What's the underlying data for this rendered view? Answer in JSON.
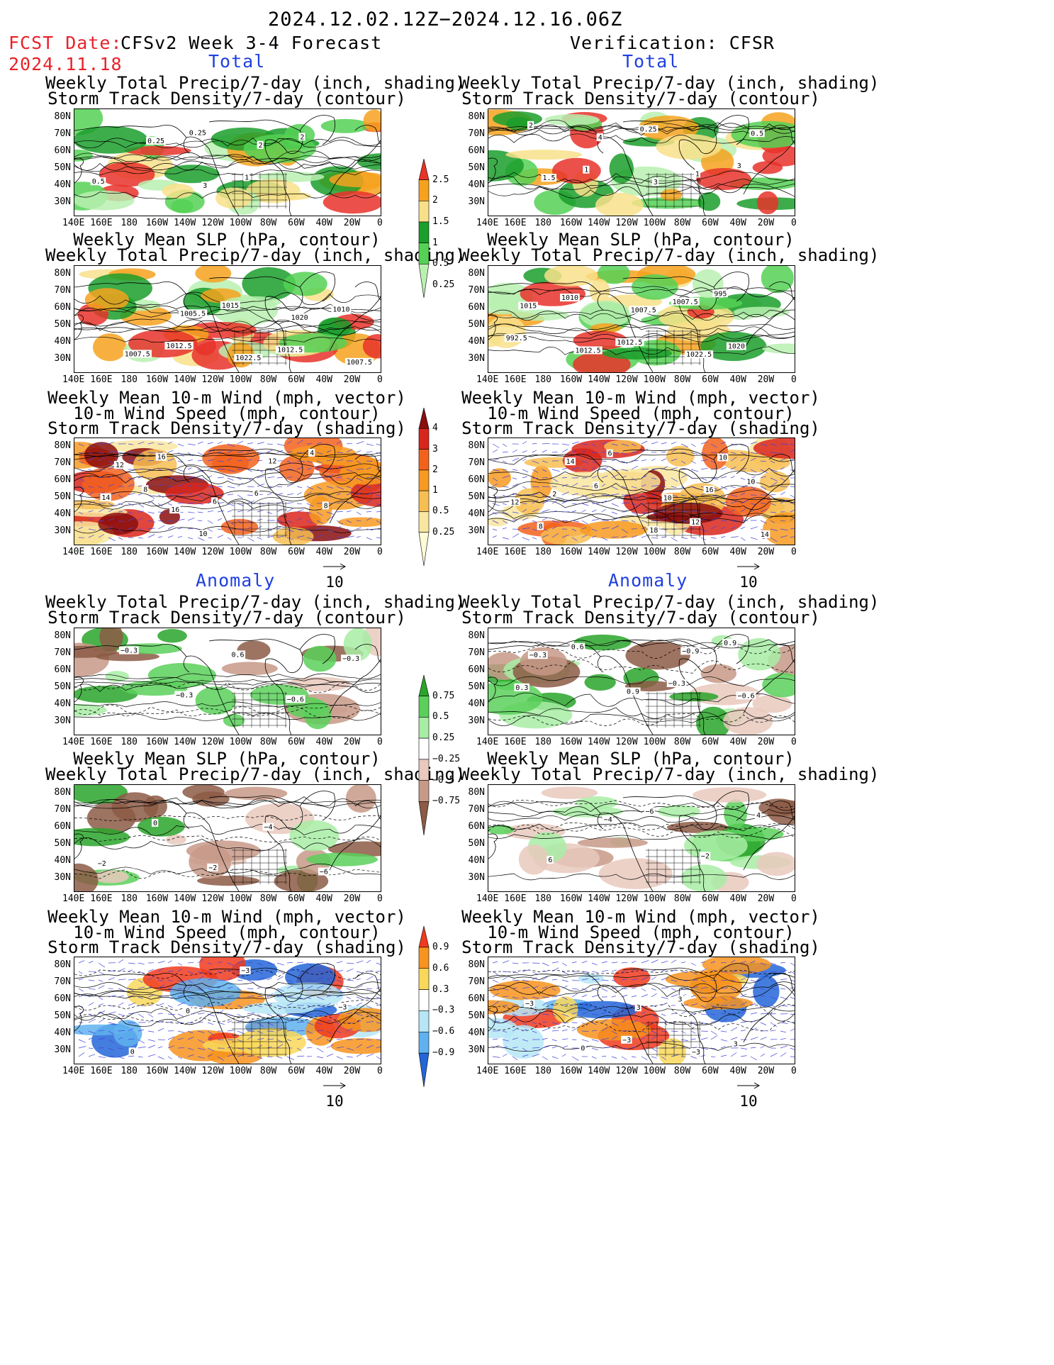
{
  "header": {
    "period": "2024.12.02.12Z−2024.12.16.06Z",
    "fcst_label": "FCST Date:",
    "fcst_date": "2024.11.18",
    "left_title": "CFSv2 Week 3-4 Forecast",
    "right_title": "Verification: CFSR"
  },
  "sections": {
    "total": "Total",
    "anomaly": "Anomaly"
  },
  "titles": {
    "precip_track": [
      "Weekly Total Precip/7-day (inch, shading)",
      "Storm Track Density/7-day (contour)"
    ],
    "slp_precip": [
      "Weekly Mean SLP (hPa, contour)",
      "Weekly Total Precip/7-day (inch, shading)"
    ],
    "wind": [
      "Weekly Mean 10-m Wind (mph, vector)",
      "10-m Wind Speed (mph, contour)",
      "Storm Track Density/7-day (shading)"
    ]
  },
  "axes": {
    "lat": [
      "80N",
      "70N",
      "60N",
      "50N",
      "40N",
      "30N"
    ],
    "lon": [
      "140E",
      "160E",
      "180",
      "160W",
      "140W",
      "120W",
      "100W",
      "80W",
      "60W",
      "40W",
      "20W",
      "0"
    ]
  },
  "vector_ref": "10",
  "colorbars": {
    "precip_total": {
      "labels": [
        "2.5",
        "2",
        "1.5",
        "1",
        "0.5",
        "0.25"
      ],
      "colors": [
        "#e8332a",
        "#f6a21f",
        "#f8e08a",
        "#1b9e2b",
        "#55d155",
        "#b9f0b0"
      ]
    },
    "track_total": {
      "labels": [
        "4",
        "3",
        "2",
        "1",
        "0.5",
        "0.25"
      ],
      "colors": [
        "#8a0e0e",
        "#d9261c",
        "#f2621d",
        "#f79a22",
        "#f7be52",
        "#f9e6a0",
        "#fffbd6"
      ]
    },
    "precip_anom": {
      "labels": [
        "0.75",
        "0.5",
        "0.25",
        "−0.25",
        "−0.5",
        "−0.75"
      ],
      "colors": [
        "#2aa52a",
        "#5ad05a",
        "#a8eda4",
        "#ffffff",
        "#e9c9bd",
        "#c79987",
        "#8c5a45"
      ]
    },
    "track_anom": {
      "labels": [
        "0.9",
        "0.6",
        "0.3",
        "−0.3",
        "−0.6",
        "−0.9"
      ],
      "colors": [
        "#f03a1e",
        "#f7931f",
        "#f9d85a",
        "#ffffff",
        "#b6e6f6",
        "#5fb2ef",
        "#2366d8"
      ]
    }
  },
  "contour_labels": {
    "p1": [
      "0.25",
      "1",
      "2",
      "0.5",
      "0.25",
      "3",
      "2"
    ],
    "p2": [
      "3",
      "2",
      "1",
      "0.25",
      "1",
      "0.5",
      "1.5",
      "4",
      "3"
    ],
    "p3": [
      "1012.5",
      "1015",
      "1012.5",
      "1010",
      "1007.5",
      "1005.5",
      "1022.5",
      "1020",
      "1007.5"
    ],
    "p4": [
      "995",
      "992.5",
      "1010",
      "1012.5",
      "1007.5",
      "1020",
      "1015",
      "1012.5",
      "1007.5",
      "1022.5"
    ],
    "p5": [
      "8",
      "10",
      "6",
      "4",
      "14",
      "16",
      "6",
      "12",
      "8",
      "12",
      "16"
    ],
    "p6": [
      "12",
      "10",
      "8",
      "6",
      "18",
      "16",
      "14",
      "2",
      "6",
      "10",
      "10",
      "12",
      "14"
    ],
    "p7": [
      "−0.3",
      "−0.3",
      "0.6",
      "−0.6",
      "−0.3"
    ],
    "p8": [
      "−0.3",
      "0.9",
      "0.3",
      "0.6",
      "0.9",
      "−0.9",
      "−0.6",
      "−0.3"
    ],
    "p9": [
      "−2",
      "0",
      "−2",
      "−4",
      "−6"
    ],
    "p10": [
      "−6",
      "−2",
      "4",
      "6",
      "−4"
    ],
    "p11": [
      "−3",
      "0",
      "0",
      "−3"
    ],
    "p12": [
      "−3",
      "3",
      "3",
      "−3",
      "0",
      "3",
      "−3"
    ]
  }
}
